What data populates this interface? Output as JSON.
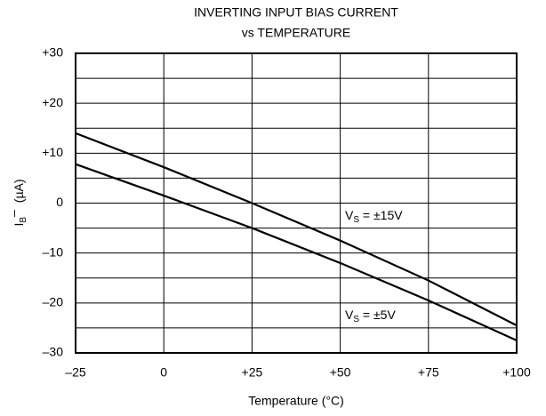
{
  "chart_data": {
    "type": "line",
    "title": [
      "INVERTING INPUT BIAS CURRENT",
      "vs TEMPERATURE"
    ],
    "x_label": "Temperature (°C)",
    "y_label": {
      "base": "I",
      "sub": "B",
      "sup": "–",
      "unit": "(µA)"
    },
    "x": [
      -25,
      0,
      25,
      50,
      75,
      100
    ],
    "series": [
      {
        "label": {
          "base": "V",
          "sub": "S",
          "text": " = ±15V"
        },
        "color": "#000000",
        "values": [
          14,
          7.2,
          0,
          -7.5,
          -15.5,
          -24.5
        ]
      },
      {
        "label": {
          "base": "V",
          "sub": "S",
          "text": " = ±5V"
        },
        "color": "#000000",
        "values": [
          7.8,
          1.5,
          -5,
          -12,
          -19.5,
          -27.5
        ]
      }
    ],
    "xlim": [
      -25,
      100
    ],
    "xticks": [
      {
        "value": -25,
        "label": "–25"
      },
      0,
      {
        "value": 25,
        "label": "+25"
      },
      {
        "value": 50,
        "label": "+50"
      },
      {
        "value": 75,
        "label": "+75"
      },
      {
        "value": 100,
        "label": "+100"
      }
    ],
    "ylim": [
      -30,
      30
    ],
    "yticks": [
      {
        "value": -30,
        "label": "–30"
      },
      {
        "value": -20,
        "label": "–20"
      },
      {
        "value": -10,
        "label": "–10"
      },
      0,
      {
        "value": 10,
        "label": "+10"
      },
      {
        "value": 20,
        "label": "+20"
      },
      {
        "value": 30,
        "label": "+30"
      }
    ],
    "yminor": [
      -25,
      -15,
      -5,
      5,
      15,
      25
    ],
    "grid": true
  }
}
